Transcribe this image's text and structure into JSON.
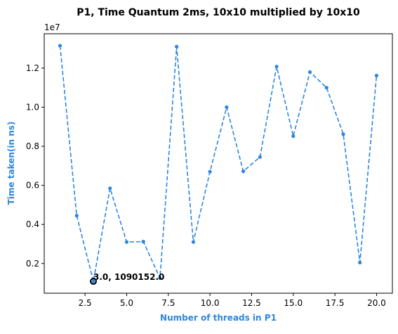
{
  "chart_data": {
    "type": "line",
    "title": "P1, Time Quantum 2ms, 10x10 multiplied by 10x10",
    "xlabel": "Number of threads in P1",
    "ylabel": "Time taken(in ns)",
    "y_offset_label": "1e7",
    "x": [
      1,
      2,
      3,
      4,
      5,
      6,
      7,
      8,
      9,
      10,
      11,
      12,
      13,
      14,
      15,
      16,
      17,
      18,
      19,
      20
    ],
    "values": [
      13150000,
      4450000,
      1090152,
      5850000,
      3100000,
      3120000,
      1250000,
      13100000,
      3100000,
      6700000,
      10000000,
      6720000,
      7450000,
      12080000,
      8520000,
      11800000,
      11000000,
      8620000,
      2050000,
      11620000
    ],
    "xlim": [
      0.05,
      20.95
    ],
    "ylim": [
      480000,
      13760000
    ],
    "x_ticks": [
      2.5,
      5.0,
      7.5,
      10.0,
      12.5,
      15.0,
      17.5,
      20.0
    ],
    "x_tick_labels": [
      "2.5",
      "5.0",
      "7.5",
      "10.0",
      "12.5",
      "15.0",
      "17.5",
      "20.0"
    ],
    "y_ticks": [
      2000000,
      4000000,
      6000000,
      8000000,
      10000000,
      12000000
    ],
    "y_tick_labels": [
      "0.2",
      "0.4",
      "0.6",
      "0.8",
      "1.0",
      "1.2"
    ],
    "line_style": "dashed",
    "marker": "dot",
    "grid": false,
    "colors": {
      "series": "#2e86de",
      "axis_label": "#2e86de",
      "highlight_edge": "#000000"
    },
    "annotation": {
      "x": 3,
      "y": 1090152,
      "text": "3.0, 1090152.0"
    }
  }
}
